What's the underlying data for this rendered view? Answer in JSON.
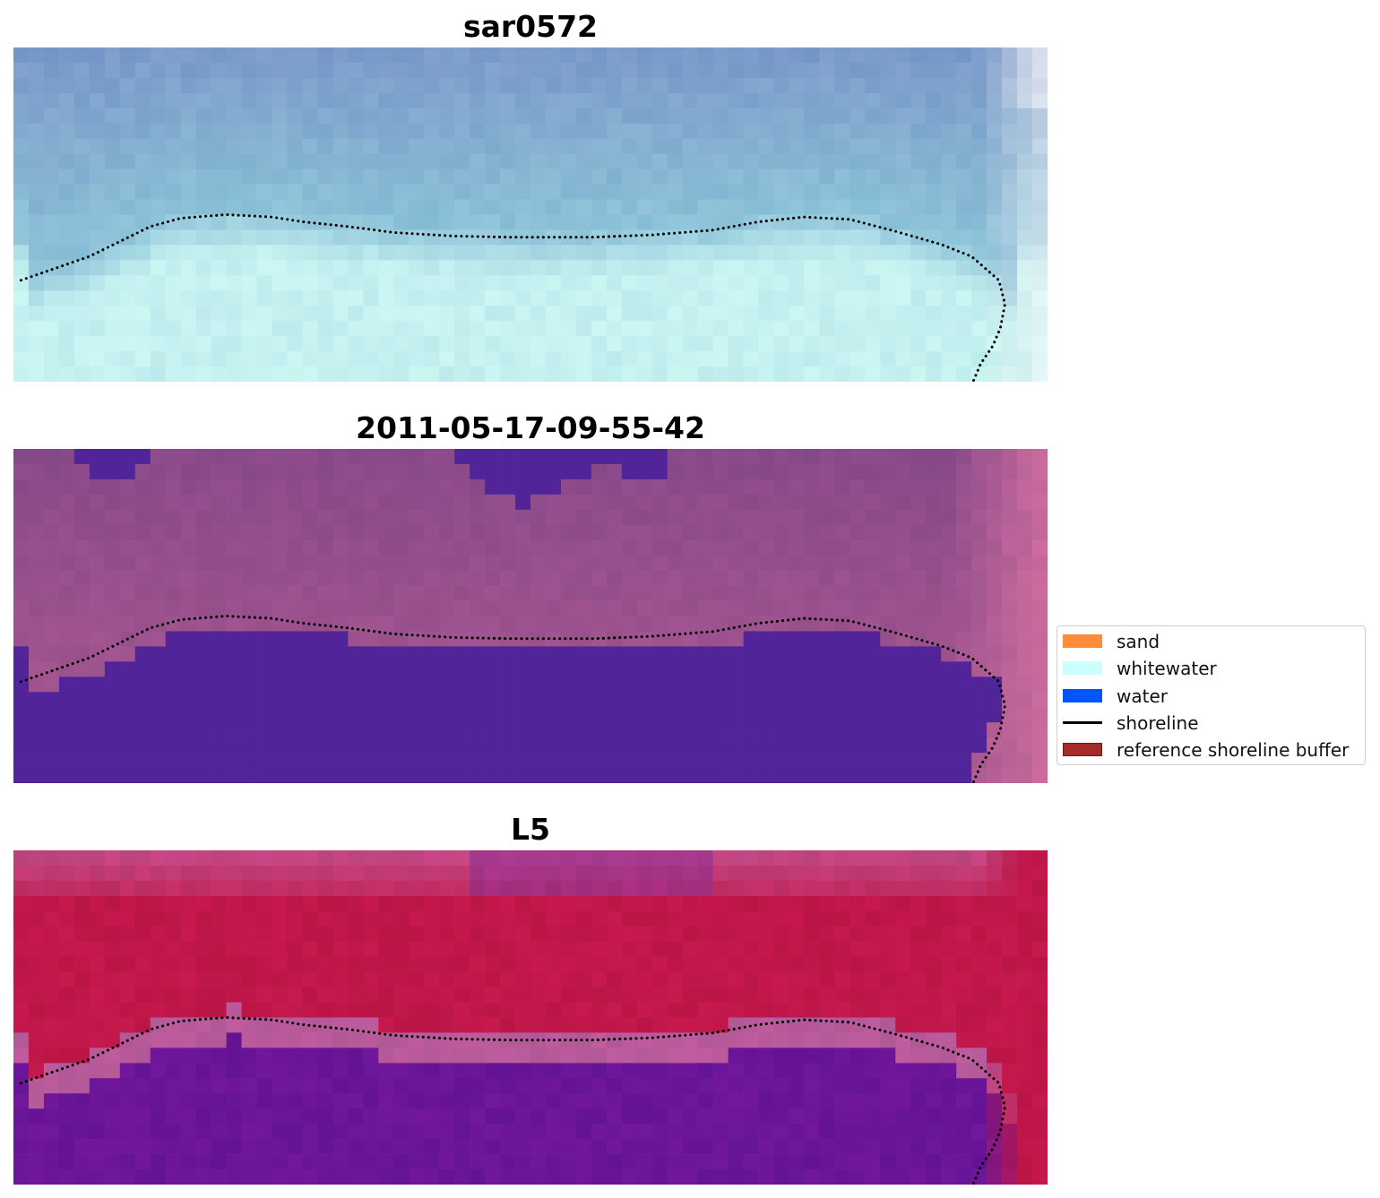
{
  "chart_data": [
    {
      "type": "heatmap",
      "title": "sar0572",
      "axes": "off",
      "grid": false,
      "palette": {
        "top": "#7b9bc9",
        "mid": "#8cc2d8",
        "bottom": "#c4f1f0",
        "corner": "#fbf7f8"
      },
      "shoreline": {
        "style": "dotted",
        "color": "#000000",
        "points": [
          [
            0.5,
            19.5
          ],
          [
            5,
            17.5
          ],
          [
            9,
            15
          ],
          [
            11,
            14.3
          ],
          [
            14,
            14
          ],
          [
            17,
            14.2
          ],
          [
            19,
            14.6
          ],
          [
            22,
            15
          ],
          [
            25,
            15.5
          ],
          [
            29,
            15.8
          ],
          [
            33,
            15.9
          ],
          [
            38,
            15.9
          ],
          [
            42,
            15.7
          ],
          [
            46,
            15.3
          ],
          [
            49,
            14.6
          ],
          [
            52,
            14.2
          ],
          [
            55,
            14.4
          ],
          [
            58,
            15.4
          ],
          [
            61,
            16.5
          ],
          [
            63,
            17.5
          ],
          [
            64.8,
            19.5
          ],
          [
            65.2,
            21.5
          ],
          [
            64.9,
            23.5
          ],
          [
            64.4,
            25
          ],
          [
            63.6,
            26.5
          ],
          [
            63.1,
            28
          ]
        ]
      }
    },
    {
      "type": "heatmap",
      "title": "2011-05-17-09-55-42",
      "axes": "off",
      "grid": false,
      "palette": {
        "land": "#8a4a8a",
        "land_light": "#a0548f",
        "water": "#52249a",
        "corner": "#c86a9c"
      },
      "shoreline": {
        "style": "dotted",
        "color": "#000000",
        "points": [
          [
            0.5,
            19.5
          ],
          [
            5,
            17.5
          ],
          [
            9,
            15
          ],
          [
            11,
            14.3
          ],
          [
            14,
            14
          ],
          [
            17,
            14.2
          ],
          [
            19,
            14.6
          ],
          [
            22,
            15
          ],
          [
            25,
            15.5
          ],
          [
            29,
            15.8
          ],
          [
            33,
            15.9
          ],
          [
            38,
            15.9
          ],
          [
            42,
            15.7
          ],
          [
            46,
            15.3
          ],
          [
            49,
            14.6
          ],
          [
            52,
            14.2
          ],
          [
            55,
            14.4
          ],
          [
            58,
            15.4
          ],
          [
            61,
            16.5
          ],
          [
            63,
            17.5
          ],
          [
            64.8,
            19.5
          ],
          [
            65.2,
            21.5
          ],
          [
            64.9,
            23.5
          ],
          [
            64.4,
            25
          ],
          [
            63.6,
            26.5
          ],
          [
            63.1,
            28
          ]
        ]
      }
    },
    {
      "type": "heatmap",
      "title": "L5",
      "axes": "off",
      "grid": false,
      "palette": {
        "top": "#c24580",
        "band": "#c0174a",
        "transition": "#b85a9a",
        "water": "#6a1598"
      },
      "shoreline": {
        "style": "dotted",
        "color": "#000000",
        "points": [
          [
            0.5,
            19.5
          ],
          [
            5,
            17.5
          ],
          [
            9,
            15
          ],
          [
            11,
            14.3
          ],
          [
            14,
            14
          ],
          [
            17,
            14.2
          ],
          [
            19,
            14.6
          ],
          [
            22,
            15
          ],
          [
            25,
            15.5
          ],
          [
            29,
            15.8
          ],
          [
            33,
            15.9
          ],
          [
            38,
            15.9
          ],
          [
            42,
            15.7
          ],
          [
            46,
            15.3
          ],
          [
            49,
            14.6
          ],
          [
            52,
            14.2
          ],
          [
            55,
            14.4
          ],
          [
            58,
            15.4
          ],
          [
            61,
            16.5
          ],
          [
            63,
            17.5
          ],
          [
            64.8,
            19.5
          ],
          [
            65.2,
            21.5
          ],
          [
            64.9,
            23.5
          ],
          [
            64.4,
            25
          ],
          [
            63.6,
            26.5
          ],
          [
            63.1,
            28
          ]
        ]
      }
    }
  ],
  "legend": {
    "placement": "right-center",
    "items": [
      {
        "label": "sand",
        "kind": "patch",
        "color": "#ff8c3a",
        "border": "#ff8c3a"
      },
      {
        "label": "whitewater",
        "kind": "patch",
        "color": "#ccffff",
        "border": "#ccffff"
      },
      {
        "label": "water",
        "kind": "patch",
        "color": "#0055ff",
        "border": "#0055ff"
      },
      {
        "label": "shoreline",
        "kind": "line",
        "color": "#000000",
        "border": "#000000"
      },
      {
        "label": "reference shoreline buffer",
        "kind": "patch",
        "color": "#a52a2a",
        "border": "#7a1414"
      }
    ]
  }
}
